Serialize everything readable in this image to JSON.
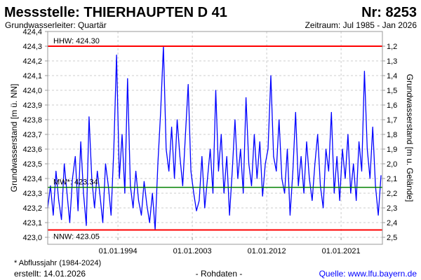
{
  "header": {
    "title": "Messstelle: THIERHAUPTEN D 41",
    "number": "Nr: 8253",
    "aquifer": "Grundwasserleiter: Quartär",
    "period": "Zeitraum: Jul 1985 - Jan 2026"
  },
  "footer": {
    "note": "* Abflussjahr (1984-2024)",
    "created": "erstellt:  14.01.2026",
    "raw": "- Rohdaten -",
    "source": "Quelle: www.lfu.bayern.de"
  },
  "colors": {
    "series": "#0000ff",
    "extreme": "#ff0000",
    "mean": "#008000",
    "grid": "#cccccc"
  },
  "chart_data": {
    "type": "line",
    "title": "Messstelle: THIERHAUPTEN D 41",
    "ylabel": "Grundwasserstand [m ü. NN]",
    "y2label": "Grundwasserstand [m u. Gelände]",
    "ylim": [
      423.0,
      424.4
    ],
    "y2_reference": 425.5,
    "yticks": [
      "423,0",
      "423,1",
      "423,2",
      "423,3",
      "423,4",
      "423,5",
      "423,6",
      "423,7",
      "423,8",
      "423,9",
      "424,0",
      "424,1",
      "424,2",
      "424,3",
      "424,4"
    ],
    "y2ticks": [
      "2,5",
      "2,4",
      "2,3",
      "2,2",
      "2,1",
      "2,0",
      "1,9",
      "1,8",
      "1,7",
      "1,6",
      "1,5",
      "1,4",
      "1,3",
      "1,2"
    ],
    "xlim": [
      1985.5,
      2026.0
    ],
    "xticks": [
      {
        "value": 1994.0,
        "label": "01.01.1994"
      },
      {
        "value": 2003.0,
        "label": "01.01.2003"
      },
      {
        "value": 2012.0,
        "label": "01.01.2012"
      },
      {
        "value": 2021.0,
        "label": "01.01.2021"
      }
    ],
    "grid": true,
    "reference_lines": [
      {
        "name": "HHW",
        "label": "HHW: 424.30",
        "value": 424.3
      },
      {
        "name": "MW",
        "label": "MW*: 423.34",
        "value": 423.34
      },
      {
        "name": "NNW",
        "label": "NNW: 423.05",
        "value": 423.05
      }
    ],
    "x_start": 1985.5,
    "x_step": 0.3333,
    "values": [
      423.2,
      423.35,
      423.15,
      423.45,
      423.25,
      423.12,
      423.5,
      423.3,
      423.1,
      423.4,
      423.55,
      423.18,
      423.65,
      423.3,
      423.08,
      423.82,
      423.4,
      423.2,
      423.45,
      423.28,
      423.1,
      423.5,
      423.35,
      423.15,
      423.6,
      424.24,
      423.4,
      423.7,
      423.3,
      424.08,
      423.35,
      423.2,
      423.45,
      423.25,
      423.15,
      423.38,
      423.22,
      423.1,
      423.3,
      423.05,
      423.5,
      423.85,
      424.3,
      423.6,
      423.45,
      423.75,
      423.4,
      423.8,
      423.55,
      423.35,
      423.7,
      424.04,
      423.45,
      423.3,
      423.18,
      423.25,
      423.55,
      423.2,
      423.4,
      423.6,
      423.3,
      424.0,
      423.45,
      423.7,
      423.3,
      423.55,
      423.15,
      423.45,
      423.8,
      423.4,
      423.6,
      423.3,
      423.95,
      423.5,
      423.35,
      423.7,
      423.4,
      423.65,
      423.28,
      423.5,
      423.6,
      424.1,
      423.55,
      423.45,
      423.8,
      423.4,
      423.3,
      423.6,
      423.15,
      423.45,
      423.85,
      423.35,
      423.55,
      423.3,
      423.65,
      423.4,
      423.25,
      423.5,
      423.7,
      423.35,
      423.2,
      423.6,
      423.45,
      423.85,
      423.3,
      423.55,
      423.25,
      423.6,
      423.4,
      423.7,
      423.3,
      423.5,
      423.25,
      423.65,
      423.45,
      424.13,
      423.6,
      423.4,
      423.75,
      423.35,
      423.15,
      423.42
    ]
  }
}
